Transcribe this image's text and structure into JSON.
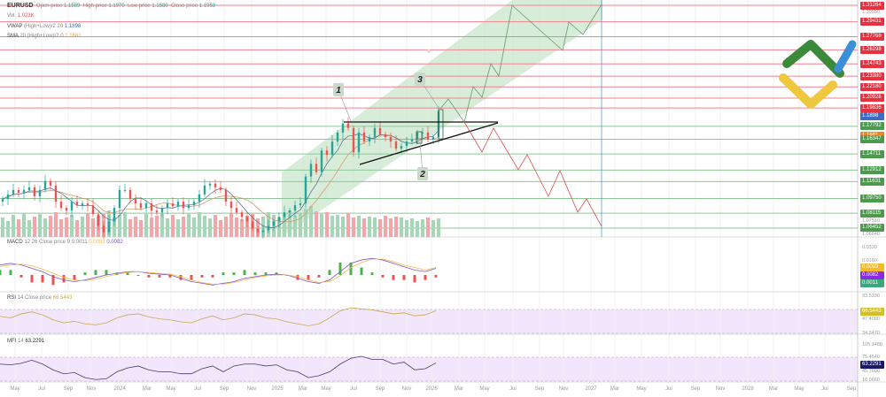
{
  "header": {
    "symbol": "EURUSD",
    "open_label": "Open price",
    "open": "1.1589",
    "high_label": "High price",
    "high": "1.1970",
    "low_label": "Low price",
    "low": "1.1580",
    "close_label": "Close price",
    "close": "1.1958",
    "vol_label": "Vol.",
    "vol": "1.023K",
    "vwap_label": "VWAP",
    "vwap_params": "(High+Low)/2 20",
    "vwap": "1.1898",
    "sma_label": "SMA",
    "sma_params": "20 (High+Low)/2 0",
    "sma": "1.1681"
  },
  "colors": {
    "up": "#26a69a",
    "down": "#ef5350",
    "resistance": "#f0828f",
    "support": "#8fc79a",
    "channel": "#c8e6c9",
    "vwap": "#3b6cc7",
    "sma": "#f0a040",
    "macd": "#7e57c2",
    "signal": "#f5b94a",
    "target": "#4a90c8"
  },
  "price_axis": {
    "resistance": [
      "1.31264",
      "1.29431",
      "1.27768",
      "1.26298",
      "1.24743",
      "1.23380",
      "1.22180",
      "1.20928",
      "1.19836"
    ],
    "vwap": "1.1898",
    "support_top": "1.17792",
    "sma": "1.1681",
    "support": [
      "1.16347",
      "1.14711",
      "1.12912",
      "1.11631",
      "1.09750",
      "1.08115",
      "1.06452"
    ],
    "grey": [
      "1.30550",
      "1.07510",
      "1.06640"
    ]
  },
  "annotations": {
    "wave1": "1",
    "wave2": "2",
    "wave3": "3"
  },
  "macd": {
    "label": "MACD",
    "params": "12 26 Close price 9",
    "hist": "0.0011",
    "signal": "0.0093",
    "macd": "0.0082",
    "ticks": [
      "0.0330",
      "0.0160"
    ]
  },
  "rsi": {
    "label": "RSI",
    "params": "14 Close price",
    "value": "66.5443",
    "ticks": [
      "93.5330",
      "47.4090",
      "34.3470"
    ]
  },
  "mfi": {
    "label": "MFI",
    "params": "14",
    "value": "63.2291",
    "ticks": [
      "105.1480",
      "75.4540",
      "45.7800",
      "16.0660"
    ]
  },
  "x_axis": [
    "May",
    "Jul",
    "Sep",
    "Nov",
    "2024",
    "Mar",
    "May",
    "Jul",
    "Sep",
    "Nov",
    "2025",
    "Mar",
    "May",
    "Jul",
    "Sep",
    "Nov",
    "2026",
    "Mar",
    "May",
    "Jul",
    "Sep",
    "Nov",
    "2027",
    "Mar",
    "May",
    "Jul",
    "Sep",
    "Nov",
    "2028",
    "Mar",
    "May",
    "Jul",
    "Sep"
  ],
  "chart_data": {
    "type": "candlestick",
    "ylim": [
      1.0645,
      1.3126
    ],
    "closes": [
      1.097,
      1.102,
      1.107,
      1.104,
      1.107,
      1.11,
      1.1,
      1.107,
      1.117,
      1.112,
      1.094,
      1.087,
      1.084,
      1.094,
      1.09,
      1.092,
      1.09,
      1.08,
      1.067,
      1.06,
      1.072,
      1.087,
      1.107,
      1.107,
      1.097,
      1.092,
      1.087,
      1.092,
      1.084,
      1.082,
      1.087,
      1.092,
      1.089,
      1.094,
      1.087,
      1.09,
      1.094,
      1.102,
      1.112,
      1.114,
      1.11,
      1.107,
      1.094,
      1.087,
      1.082,
      1.077,
      1.072,
      1.064,
      1.06,
      1.062,
      1.067,
      1.072,
      1.077,
      1.082,
      1.084,
      1.09,
      1.092,
      1.122,
      1.136,
      1.127,
      1.151,
      1.146,
      1.161,
      1.171,
      1.181,
      1.176,
      1.149,
      1.171,
      1.161,
      1.166,
      1.176,
      1.169,
      1.166,
      1.161,
      1.153,
      1.156,
      1.161,
      1.163,
      1.171,
      1.171,
      1.163,
      1.166,
      1.195
    ],
    "volume": [
      22,
      18,
      25,
      20,
      27,
      19,
      23,
      26,
      21,
      24,
      28,
      20,
      22,
      25,
      19,
      23,
      27,
      21,
      24,
      26,
      30,
      22,
      25,
      28,
      20,
      23,
      19,
      26,
      22,
      24,
      27,
      21,
      25,
      20,
      23,
      26,
      22,
      28,
      24,
      21,
      25,
      19,
      23,
      27,
      22,
      20,
      24,
      26,
      21,
      23,
      28,
      25,
      22,
      26,
      30,
      24,
      27,
      32,
      35,
      29,
      26,
      28,
      24,
      25,
      23,
      27,
      22,
      24,
      21,
      23,
      22,
      20,
      24,
      21,
      23,
      22,
      19,
      21,
      18,
      20,
      22,
      19,
      21
    ],
    "mfi": [
      60,
      58,
      62,
      70,
      60,
      45,
      35,
      38,
      25,
      20,
      22,
      40,
      50,
      55,
      45,
      40,
      40,
      35,
      35,
      48,
      55,
      40,
      55,
      60,
      60,
      55,
      58,
      45,
      40,
      25,
      30,
      40,
      60,
      75,
      80,
      72,
      72,
      60,
      65,
      45,
      48,
      63
    ],
    "rsi": [
      55,
      52,
      60,
      64,
      58,
      48,
      42,
      45,
      40,
      38,
      42,
      52,
      58,
      60,
      54,
      50,
      48,
      44,
      42,
      50,
      56,
      48,
      52,
      60,
      58,
      52,
      50,
      44,
      40,
      36,
      40,
      52,
      66,
      72,
      70,
      68,
      64,
      60,
      62,
      56,
      58,
      66
    ],
    "macd_line": [
      0.012,
      0.014,
      0.012,
      0.008,
      0.004,
      -0.002,
      -0.006,
      -0.008,
      -0.006,
      -0.003,
      0.0,
      0.002,
      0.004,
      0.004,
      0.002,
      0.001,
      0.0,
      -0.004,
      -0.008,
      -0.01,
      -0.012,
      -0.01,
      -0.008,
      -0.004,
      -0.002,
      0.0,
      0.001,
      0.0,
      -0.004,
      -0.008,
      -0.01,
      -0.006,
      0.004,
      0.014,
      0.018,
      0.02,
      0.018,
      0.014,
      0.01,
      0.006,
      0.004,
      0.008
    ],
    "signal_line": [
      0.01,
      0.012,
      0.013,
      0.011,
      0.007,
      0.002,
      -0.003,
      -0.006,
      -0.007,
      -0.005,
      -0.002,
      0.001,
      0.003,
      0.004,
      0.003,
      0.002,
      0.001,
      -0.002,
      -0.006,
      -0.009,
      -0.011,
      -0.011,
      -0.009,
      -0.006,
      -0.003,
      -0.001,
      0.0,
      0.0,
      -0.002,
      -0.006,
      -0.009,
      -0.008,
      -0.001,
      0.009,
      0.015,
      0.019,
      0.019,
      0.016,
      0.012,
      0.009,
      0.006,
      0.009
    ]
  }
}
